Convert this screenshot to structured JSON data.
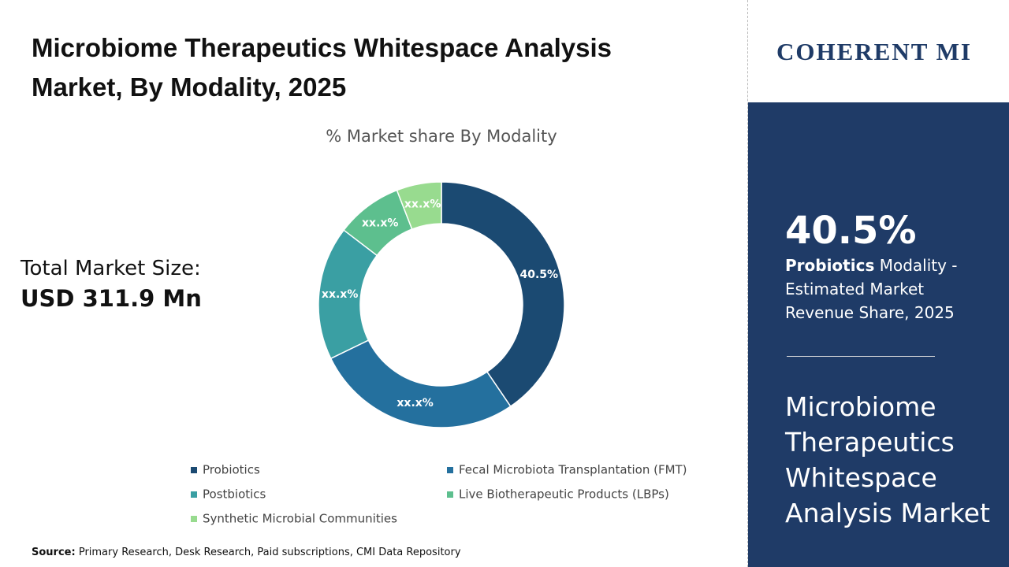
{
  "header": {
    "title": "Microbiome Therapeutics Whitespace Analysis Market, By Modality, 2025"
  },
  "market_size": {
    "label": "Total Market Size:",
    "value": "USD 311.9 Mn"
  },
  "chart_data": {
    "type": "donut",
    "title": "% Market share By Modality",
    "categories": [
      "Probiotics",
      "Fecal Microbiota Transplantation (FMT)",
      "Postbiotics",
      "Live Biotherapeutic Products (LBPs)",
      "Synthetic Microbial Communities"
    ],
    "values": [
      40.5,
      27.3,
      17.6,
      8.7,
      5.9
    ],
    "value_labels": [
      "40.5%",
      "xx.x%",
      "xx.x%",
      "xx.x%",
      "xx.x%"
    ],
    "colors": [
      "#1b4a72",
      "#24709e",
      "#3a9fa3",
      "#5dbf8e",
      "#98db8f"
    ]
  },
  "source": {
    "label": "Source:",
    "text": "Primary Research, Desk Research, Paid subscriptions, CMI Data Repository"
  },
  "side_panel": {
    "logo": "COHERENT MI",
    "highlight": "40.5%",
    "segment": "Probiotics",
    "caption": "Modality - Estimated Market Revenue Share, 2025",
    "report": "Microbiome Therapeutics Whitespace Analysis Market"
  }
}
